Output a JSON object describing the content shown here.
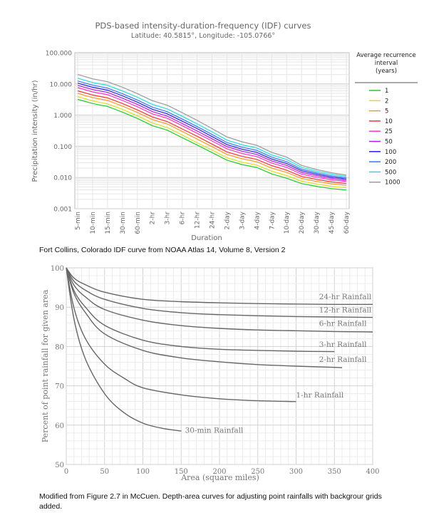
{
  "captions": {
    "idf": "Fort Collins, Colorado IDF curve from NOAA Atlas 14, Volume 8, Version 2",
    "depth_area": "Modified from Figure 2.7 in McCuen. Depth-area curves for adjusting point rainfalls with backgrour grids added."
  },
  "chart_data": [
    {
      "type": "line",
      "title": "PDS-based intensity-duration-frequency (IDF) curves",
      "subtitle": "Latitude: 40.5815°, Longitude: -105.0766°",
      "xlabel": "Duration",
      "ylabel": "Precipitation intensity (in/hr)",
      "y_scale": "log",
      "ylim": [
        0.001,
        100
      ],
      "yticks": [
        "0.001",
        "0.010",
        "0.100",
        "1.000",
        "10.000",
        "100.000"
      ],
      "categories": [
        "5-min",
        "10-min",
        "15-min",
        "30-min",
        "60-min",
        "2-hr",
        "3-hr",
        "6-hr",
        "12-hr",
        "24-hr",
        "2-day",
        "3-day",
        "4-day",
        "7-day",
        "10-day",
        "20-day",
        "30-day",
        "45-day",
        "60-day"
      ],
      "legend_title": "Average recurrence interval (years)",
      "legend_position": "right",
      "grid": true,
      "series": [
        {
          "name": "1",
          "color": "#22cc22",
          "values": [
            3.2,
            2.35,
            1.9,
            1.25,
            0.78,
            0.46,
            0.33,
            0.19,
            0.11,
            0.063,
            0.036,
            0.026,
            0.021,
            0.013,
            0.0095,
            0.0064,
            0.0052,
            0.0044,
            0.004
          ]
        },
        {
          "name": "2",
          "color": "#dddd22",
          "values": [
            3.9,
            2.85,
            2.3,
            1.52,
            0.95,
            0.56,
            0.4,
            0.23,
            0.13,
            0.076,
            0.043,
            0.031,
            0.025,
            0.016,
            0.0115,
            0.0076,
            0.0062,
            0.0052,
            0.0047
          ]
        },
        {
          "name": "5",
          "color": "#ff9922",
          "values": [
            5.0,
            3.65,
            2.95,
            1.95,
            1.22,
            0.72,
            0.52,
            0.3,
            0.17,
            0.098,
            0.055,
            0.04,
            0.032,
            0.02,
            0.0145,
            0.0093,
            0.0075,
            0.0063,
            0.0056
          ]
        },
        {
          "name": "10",
          "color": "#ff3333",
          "values": [
            6.0,
            4.4,
            3.55,
            2.35,
            1.47,
            0.87,
            0.62,
            0.36,
            0.21,
            0.118,
            0.066,
            0.048,
            0.038,
            0.024,
            0.0172,
            0.0108,
            0.0087,
            0.0072,
            0.0064
          ]
        },
        {
          "name": "25",
          "color": "#ff33cc",
          "values": [
            7.6,
            5.55,
            4.5,
            2.95,
            1.85,
            1.1,
            0.79,
            0.46,
            0.26,
            0.148,
            0.083,
            0.059,
            0.047,
            0.029,
            0.021,
            0.0128,
            0.0102,
            0.0084,
            0.0074
          ]
        },
        {
          "name": "50",
          "color": "#aa22dd",
          "values": [
            9.0,
            6.6,
            5.35,
            3.5,
            2.2,
            1.3,
            0.93,
            0.54,
            0.31,
            0.175,
            0.098,
            0.07,
            0.055,
            0.034,
            0.0245,
            0.0146,
            0.0115,
            0.0094,
            0.0082
          ]
        },
        {
          "name": "100",
          "color": "#2222ee",
          "values": [
            10.6,
            7.8,
            6.3,
            4.15,
            2.6,
            1.54,
            1.1,
            0.64,
            0.37,
            0.205,
            0.114,
            0.081,
            0.064,
            0.039,
            0.0282,
            0.0165,
            0.0128,
            0.0104,
            0.009
          ]
        },
        {
          "name": "200",
          "color": "#3377ff",
          "values": [
            12.4,
            9.1,
            7.35,
            4.85,
            3.05,
            1.8,
            1.29,
            0.75,
            0.43,
            0.24,
            0.132,
            0.094,
            0.074,
            0.045,
            0.0322,
            0.0185,
            0.0142,
            0.0114,
            0.0098
          ]
        },
        {
          "name": "500",
          "color": "#22dddd",
          "values": [
            15.2,
            11.1,
            9.0,
            5.95,
            3.75,
            2.2,
            1.58,
            0.92,
            0.52,
            0.29,
            0.158,
            0.112,
            0.088,
            0.053,
            0.0378,
            0.0212,
            0.016,
            0.0128,
            0.0109
          ]
        },
        {
          "name": "1000",
          "color": "#999999",
          "values": [
            20.0,
            14.5,
            11.8,
            7.8,
            4.9,
            2.9,
            2.08,
            1.2,
            0.68,
            0.37,
            0.2,
            0.14,
            0.108,
            0.064,
            0.045,
            0.0245,
            0.018,
            0.0142,
            0.0119
          ]
        }
      ]
    },
    {
      "type": "line",
      "title": "",
      "xlabel": "Area (square miles)",
      "ylabel": "Percent of point rainfall for given area",
      "xlim": [
        0,
        400
      ],
      "ylim": [
        50,
        100
      ],
      "xticks": [
        "0",
        "50",
        "100",
        "150",
        "200",
        "250",
        "300",
        "350",
        "400"
      ],
      "yticks": [
        "50",
        "60",
        "70",
        "80",
        "90",
        "100"
      ],
      "grid": true,
      "line_color": "#666666",
      "series": [
        {
          "name": "24-hr Rainfall",
          "x": [
            0,
            10,
            25,
            50,
            100,
            150,
            200,
            250,
            300,
            350,
            400
          ],
          "values": [
            100,
            97.4,
            95.7,
            93.8,
            92.0,
            91.4,
            91.1,
            90.9,
            90.8,
            90.7,
            90.7
          ]
        },
        {
          "name": "12-hr Rainfall",
          "x": [
            0,
            10,
            25,
            50,
            100,
            150,
            200,
            250,
            300,
            350,
            400
          ],
          "values": [
            100,
            96.6,
            94.3,
            92.0,
            89.7,
            88.6,
            88.1,
            87.8,
            87.6,
            87.5,
            87.4
          ]
        },
        {
          "name": "6-hr Rainfall",
          "x": [
            0,
            10,
            25,
            50,
            100,
            150,
            200,
            250,
            300,
            350,
            400
          ],
          "values": [
            100,
            95.6,
            92.6,
            89.4,
            86.7,
            85.3,
            84.6,
            84.2,
            84.0,
            83.8,
            83.7
          ]
        },
        {
          "name": "3-hr Rainfall",
          "x": [
            0,
            10,
            25,
            50,
            100,
            150,
            200,
            250,
            300,
            350
          ],
          "values": [
            100,
            94.2,
            90.0,
            85.4,
            81.6,
            80.0,
            79.3,
            79.0,
            78.8,
            78.7
          ]
        },
        {
          "name": "2-hr Rainfall",
          "x": [
            0,
            10,
            25,
            50,
            100,
            150,
            200,
            250,
            300,
            350,
            360
          ],
          "values": [
            100,
            93.5,
            88.6,
            83.2,
            79.0,
            77.1,
            76.1,
            75.4,
            75.0,
            74.7,
            74.6
          ]
        },
        {
          "name": "1-hr Rainfall",
          "x": [
            0,
            10,
            25,
            50,
            75,
            100,
            150,
            200,
            250,
            300
          ],
          "values": [
            100,
            89.8,
            82.0,
            75.5,
            72.0,
            69.5,
            67.7,
            66.7,
            66.2,
            66.0
          ]
        },
        {
          "name": "30-min Rainfall",
          "x": [
            0,
            10,
            25,
            50,
            75,
            100,
            125,
            150
          ],
          "values": [
            100,
            87.0,
            76.8,
            68.0,
            63.2,
            60.5,
            59.2,
            58.5
          ]
        }
      ]
    }
  ]
}
